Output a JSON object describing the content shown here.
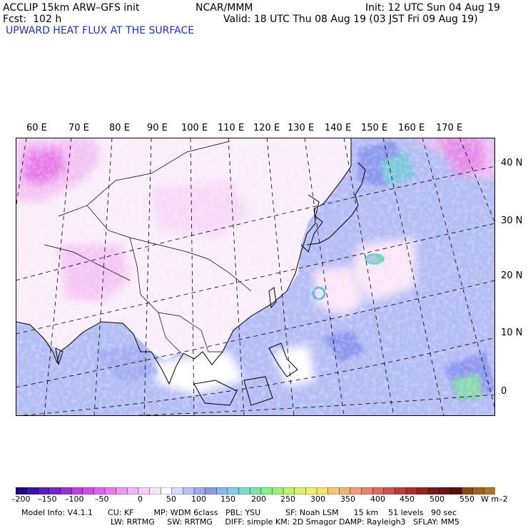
{
  "header": {
    "model": "ACCLIP 15km ARW–GFS init",
    "center": "NCAR/MMM",
    "init": "Init: 12 UTC Sun 04 Aug 19",
    "fcst": "Fcst:  102 h",
    "valid": "Valid: 18 UTC Thu 08 Aug 19 (03 JST Fri 09 Aug 19)",
    "field_title": "UPWARD HEAT FLUX AT THE SURFACE"
  },
  "map": {
    "lon_labels": [
      "60 E",
      "70 E",
      "80 E",
      "90 E",
      "100 E",
      "110 E",
      "120 E",
      "130 E",
      "140 E",
      "150 E",
      "160 E",
      "170 E"
    ],
    "lat_labels": [
      "40 N",
      "30 N",
      "20 N",
      "10 N",
      "0"
    ]
  },
  "legend": {
    "ticks": [
      "–200",
      "–150",
      "–100",
      "–50",
      "0",
      "50",
      "100",
      "150",
      "200",
      "250",
      "300",
      "350",
      "400",
      "450",
      "500",
      "550"
    ],
    "unit": "W m–2",
    "colors": [
      "#1c0a8a",
      "#3a14a8",
      "#5a1cbe",
      "#7a22d0",
      "#9a30dc",
      "#b83ee6",
      "#d04cee",
      "#e060f2",
      "#ec7af4",
      "#f296f6",
      "#f6b2f8",
      "#f8cef8",
      "#fae4fa",
      "#ffffff",
      "#d8dcfa",
      "#b8c0f6",
      "#a0aaf2",
      "#8c98ee",
      "#88b8f0",
      "#7cd0e8",
      "#78dcc8",
      "#7ce4a8",
      "#88ec88",
      "#a0f078",
      "#bcf470",
      "#d6f46c",
      "#ecf06c",
      "#f6e070",
      "#f8c870",
      "#f8b070",
      "#f69870",
      "#f08068",
      "#e46860",
      "#d45050",
      "#c43c3c",
      "#b02c2c",
      "#982020",
      "#801818",
      "#6c1410",
      "#5a100c",
      "#8a4a1a",
      "#a0601e",
      "#b07424"
    ]
  },
  "model_info": {
    "line1": "Model Info: V4.1.1      CU: KF        MP: WDM 6class   PBL: YSU          SF: Noah LSM      15 km    51 levels   90 sec",
    "line2": "LW: RRTMG     SW: RRTMG     DIFF: simple KM: 2D Smagor DAMP: Rayleigh3   SFLAY: MM5"
  }
}
